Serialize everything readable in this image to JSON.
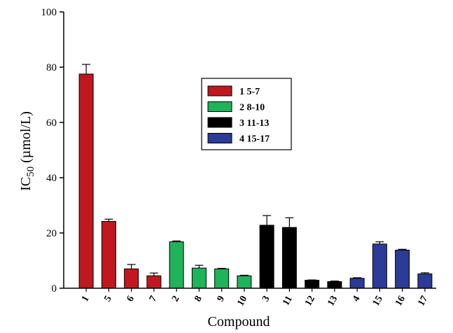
{
  "chart_data": {
    "type": "bar",
    "title": "",
    "xlabel": "Compound",
    "ylabel": "IC50 (µmol/L)",
    "ylabel_main": "IC",
    "ylabel_sub": "50",
    "ylabel_rest": " (µmol/L)",
    "ylim": [
      0,
      100
    ],
    "yticks": [
      0,
      20,
      40,
      60,
      80,
      100
    ],
    "categories": [
      "1",
      "5",
      "6",
      "7",
      "2",
      "8",
      "9",
      "10",
      "3",
      "11",
      "12",
      "13",
      "4",
      "15",
      "16",
      "17"
    ],
    "values": [
      77.5,
      24.2,
      7.0,
      4.5,
      16.8,
      7.3,
      7.0,
      4.5,
      22.8,
      22.0,
      2.9,
      2.4,
      3.6,
      16.0,
      13.8,
      5.2
    ],
    "errors": [
      3.5,
      0.8,
      1.6,
      1.0,
      0.3,
      1.0,
      0.2,
      0.2,
      3.5,
      3.5,
      0.1,
      0.2,
      0.2,
      0.8,
      0.3,
      0.4
    ],
    "groups": [
      0,
      0,
      0,
      0,
      1,
      1,
      1,
      1,
      2,
      2,
      2,
      2,
      3,
      3,
      3,
      3
    ],
    "legend": {
      "placement": "upper-center",
      "entries": [
        {
          "label": "1 5-7",
          "color": "#c0181e"
        },
        {
          "label": "2 8-10",
          "color": "#1fb35a"
        },
        {
          "label": "3 11-13",
          "color": "#000000"
        },
        {
          "label": "4 15-17",
          "color": "#2b3b97"
        }
      ]
    }
  }
}
